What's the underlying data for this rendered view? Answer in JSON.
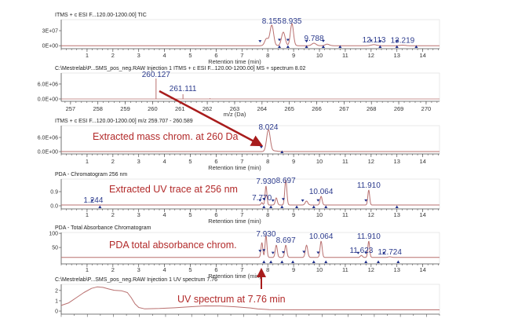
{
  "colors": {
    "trace": "#b9706f",
    "peak_label": "#2b3a8c",
    "annotation": "#b22a2a",
    "arrow": "#a81c1c",
    "marker": "#1f2f8a"
  },
  "annotations": {
    "mass_chrom": "Extracted mass chrom. at 260 Da",
    "uv_trace": "Extracted UV trace at 256 nm",
    "pda_total": "PDA total absorbance chrom.",
    "uv_spectrum": "UV spectrum at 7.76 min"
  },
  "chart_data": [
    {
      "type": "line",
      "title": "ITMS + c ESI F...120.00-1200.00] TIC",
      "xlabel": "Retention time (min)",
      "xlim": [
        0,
        14.65
      ],
      "ylim": [
        -6000000,
        52000000
      ],
      "xticks": [
        1,
        2,
        3,
        4,
        5,
        6,
        7,
        8,
        9,
        10,
        11,
        12,
        13,
        14
      ],
      "yticks": [
        {
          "v": 30000000,
          "label": "3E+07"
        },
        {
          "v": 0,
          "label": "0E+00"
        }
      ],
      "baseline": 0,
      "peaks": [
        {
          "rt": 7.95,
          "h": 14000000,
          "w": 0.07
        },
        {
          "rt": 8.155,
          "h": 41000000,
          "w": 0.07
        },
        {
          "rt": 8.6,
          "h": 27000000,
          "w": 0.07
        },
        {
          "rt": 8.935,
          "h": 44000000,
          "w": 0.06
        },
        {
          "rt": 9.788,
          "h": 5000000,
          "w": 0.08
        },
        {
          "rt": 10.3,
          "h": 3000000,
          "w": 0.08
        },
        {
          "rt": 12.113,
          "h": 2000000,
          "w": 0.1
        },
        {
          "rt": 13.219,
          "h": 1000000,
          "w": 0.1
        }
      ],
      "peak_labels": [
        {
          "text": "8.155",
          "rt": 8.155
        },
        {
          "text": "8.935",
          "rt": 8.935
        },
        {
          "text": "9.788",
          "rt": 9.788
        },
        {
          "text": "12.113",
          "rt": 12.113
        },
        {
          "text": "13.219",
          "rt": 13.219
        }
      ],
      "markers_start": [
        7.7,
        8.45,
        8.78,
        9.5,
        10.15,
        12.0,
        12.35,
        13.0
      ],
      "markers_end": [
        8.45,
        8.78,
        9.5,
        10.15,
        10.8,
        12.35,
        13.0,
        13.75
      ]
    },
    {
      "type": "bar",
      "title": "C:\\Mestrelab\\P...SMS_pos_neg.RAW Injection 1 ITMS + c ESI F...120.00-1200.00] MS + spectrum 8.02",
      "xlabel": "m/z (Da)",
      "xlim": [
        256.66,
        270.49
      ],
      "ylim": [
        -950000,
        10400000
      ],
      "xticks": [
        257,
        258,
        259,
        260,
        261,
        262,
        263,
        264,
        265,
        266,
        267,
        268,
        269,
        270
      ],
      "yticks": [
        {
          "v": 6000000,
          "label": "6.0E+06"
        },
        {
          "v": 0,
          "label": "0.0E+00"
        }
      ],
      "sticks": [
        {
          "mz": 260.127,
          "intensity": 8200000
        },
        {
          "mz": 261.111,
          "intensity": 1900000
        },
        {
          "mz": 262.1,
          "intensity": 300000
        }
      ],
      "peak_labels": [
        {
          "text": "260.127",
          "rt": 260.127
        },
        {
          "text": "261.111",
          "rt": 261.111
        }
      ]
    },
    {
      "type": "line",
      "title": "ITMS + c ESI F...120.00-1200.00]  m/z 259.707 - 260.589",
      "xlabel": "Retention time (min)",
      "xlim": [
        0,
        14.65
      ],
      "ylim": [
        -1000000,
        11000000
      ],
      "xticks": [
        1,
        2,
        3,
        4,
        5,
        6,
        7,
        8,
        9,
        10,
        11,
        12,
        13,
        14
      ],
      "yticks": [
        {
          "v": 6000000,
          "label": "6.0E+06"
        },
        {
          "v": 0,
          "label": "0.0E+00"
        }
      ],
      "baseline": 0,
      "peaks": [
        {
          "rt": 8.024,
          "h": 9300000,
          "w": 0.07
        },
        {
          "rt": 8.25,
          "h": 300000,
          "w": 0.12
        }
      ],
      "peak_labels": [
        {
          "text": "8.024",
          "rt": 8.024
        }
      ],
      "markers_start": [
        7.75
      ],
      "markers_end": [
        8.55
      ]
    },
    {
      "type": "line",
      "title": "PDA - Chromatogram 256 nm",
      "xlabel": "Retention time (min)",
      "xlim": [
        0,
        14.65
      ],
      "ylim": [
        -0.2,
        1.7
      ],
      "xticks": [
        1,
        2,
        3,
        4,
        5,
        6,
        7,
        8,
        9,
        10,
        11,
        12,
        13,
        14
      ],
      "yticks": [
        {
          "v": 0.9,
          "label": "0.9"
        },
        {
          "v": 0.0,
          "label": "0.0"
        }
      ],
      "baseline": 0.05,
      "peaks": [
        {
          "rt": 7.77,
          "h": 0.15,
          "w": 0.03
        },
        {
          "rt": 7.93,
          "h": 1.2,
          "w": 0.035
        },
        {
          "rt": 8.33,
          "h": 0.45,
          "w": 0.04
        },
        {
          "rt": 8.697,
          "h": 1.6,
          "w": 0.04
        },
        {
          "rt": 9.5,
          "h": 0.25,
          "w": 0.05
        },
        {
          "rt": 10.064,
          "h": 0.55,
          "w": 0.04
        },
        {
          "rt": 11.91,
          "h": 0.95,
          "w": 0.035
        }
      ],
      "peak_labels": [
        {
          "text": "1.244",
          "rt": 1.244
        },
        {
          "text": "7.770",
          "rt": 7.77
        },
        {
          "text": "7.930",
          "rt": 7.93
        },
        {
          "text": "8.697",
          "rt": 8.697
        },
        {
          "text": "10.064",
          "rt": 10.064
        },
        {
          "text": "11.910",
          "rt": 11.91
        }
      ],
      "markers_start": [
        1.2,
        7.7,
        7.85,
        8.2,
        8.6,
        9.35,
        9.95,
        11.8
      ],
      "markers_end": [
        1.5,
        7.85,
        8.12,
        8.55,
        9.12,
        9.78,
        10.25,
        13.0
      ]
    },
    {
      "type": "line",
      "title": "PDA - Total Absorbance Chromatogram",
      "xlabel": "Retention time (min)",
      "xlim": [
        0,
        14.65
      ],
      "ylim": [
        -8,
        103
      ],
      "xticks": [
        1,
        2,
        3,
        4,
        5,
        6,
        7,
        8,
        9,
        10,
        11,
        12,
        13,
        14
      ],
      "yticks": [
        {
          "v": 100,
          "label": "100"
        },
        {
          "v": 50,
          "label": "50"
        }
      ],
      "baseline": 15,
      "peaks": [
        {
          "rt": 7.77,
          "h": 52,
          "w": 0.035
        },
        {
          "rt": 7.93,
          "h": 78,
          "w": 0.035
        },
        {
          "rt": 8.33,
          "h": 43,
          "w": 0.04
        },
        {
          "rt": 8.697,
          "h": 43,
          "w": 0.04
        },
        {
          "rt": 9.5,
          "h": 43,
          "w": 0.045
        },
        {
          "rt": 10.064,
          "h": 57,
          "w": 0.04
        },
        {
          "rt": 11.623,
          "h": 7,
          "w": 0.04
        },
        {
          "rt": 11.91,
          "h": 57,
          "w": 0.035
        },
        {
          "rt": 12.724,
          "h": 2,
          "w": 0.06
        }
      ],
      "peak_labels": [
        {
          "text": "7.930",
          "rt": 7.93
        },
        {
          "text": "8.697",
          "rt": 8.697
        },
        {
          "text": "10.064",
          "rt": 10.064
        },
        {
          "text": "11.623",
          "rt": 11.623
        },
        {
          "text": "11.910",
          "rt": 11.91
        },
        {
          "text": "12.724",
          "rt": 12.724
        }
      ],
      "markers_start": [
        7.7,
        7.85,
        8.2,
        8.6,
        9.4,
        9.95,
        11.5,
        11.8,
        12.5
      ],
      "markers_end": [
        7.85,
        8.12,
        8.55,
        8.97,
        9.78,
        10.25,
        11.8,
        12.28,
        13.05
      ]
    },
    {
      "type": "line",
      "title": "C:\\Mestrelab\\P...SMS_pos_neg.RAW Injection 1  UV spectrum 7.76",
      "xlim": [
        0,
        100
      ],
      "ylim": [
        -0.3,
        2.6
      ],
      "yticks": [
        {
          "v": 2,
          "label": "2"
        },
        {
          "v": 1,
          "label": "1"
        },
        {
          "v": 0,
          "label": "0"
        }
      ],
      "points": [
        [
          0,
          0.55
        ],
        [
          2,
          0.8
        ],
        [
          4,
          1.3
        ],
        [
          6,
          1.8
        ],
        [
          8,
          2.2
        ],
        [
          9.5,
          2.35
        ],
        [
          11,
          2.3
        ],
        [
          12.5,
          2.15
        ],
        [
          14,
          2.02
        ],
        [
          16,
          1.97
        ],
        [
          17.5,
          1.8
        ],
        [
          18.5,
          1.3
        ],
        [
          19.5,
          0.7
        ],
        [
          20.5,
          0.35
        ],
        [
          22,
          0.22
        ],
        [
          26,
          0.25
        ],
        [
          30,
          0.32
        ],
        [
          34,
          0.42
        ],
        [
          38,
          0.5
        ],
        [
          42,
          0.49
        ],
        [
          46,
          0.42
        ],
        [
          50,
          0.3
        ],
        [
          52,
          0.2
        ],
        [
          55,
          0.14
        ],
        [
          62,
          0.12
        ],
        [
          100,
          0.12
        ]
      ]
    }
  ]
}
